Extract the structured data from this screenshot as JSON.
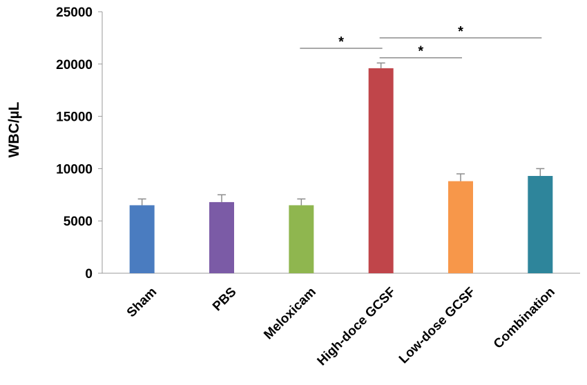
{
  "chart_data": {
    "type": "bar",
    "title": "",
    "xlabel": "",
    "ylabel": "WBC/µL",
    "ylim": [
      0,
      25000
    ],
    "yticks": [
      0,
      5000,
      10000,
      15000,
      20000,
      25000
    ],
    "grid": false,
    "categories": [
      "Sham",
      "PBS",
      "Meloxicam",
      "High-doce GCSF",
      "Low-dose GCSF",
      "Combination"
    ],
    "values": [
      6500,
      6800,
      6500,
      19600,
      8800,
      9300
    ],
    "errors": [
      600,
      700,
      600,
      500,
      700,
      700
    ],
    "colors": [
      "#4a7cc0",
      "#7b5ba6",
      "#8fb64f",
      "#c0454a",
      "#f7974a",
      "#2e859b"
    ],
    "significance": [
      {
        "from": "Meloxicam",
        "to": "High-doce GCSF",
        "y": 21500,
        "label": "*"
      },
      {
        "from": "High-doce GCSF",
        "to": "Low-dose GCSF",
        "y": 20600,
        "label": "*"
      },
      {
        "from": "High-doce GCSF",
        "to": "Combination",
        "y": 22500,
        "label": "*"
      }
    ]
  }
}
